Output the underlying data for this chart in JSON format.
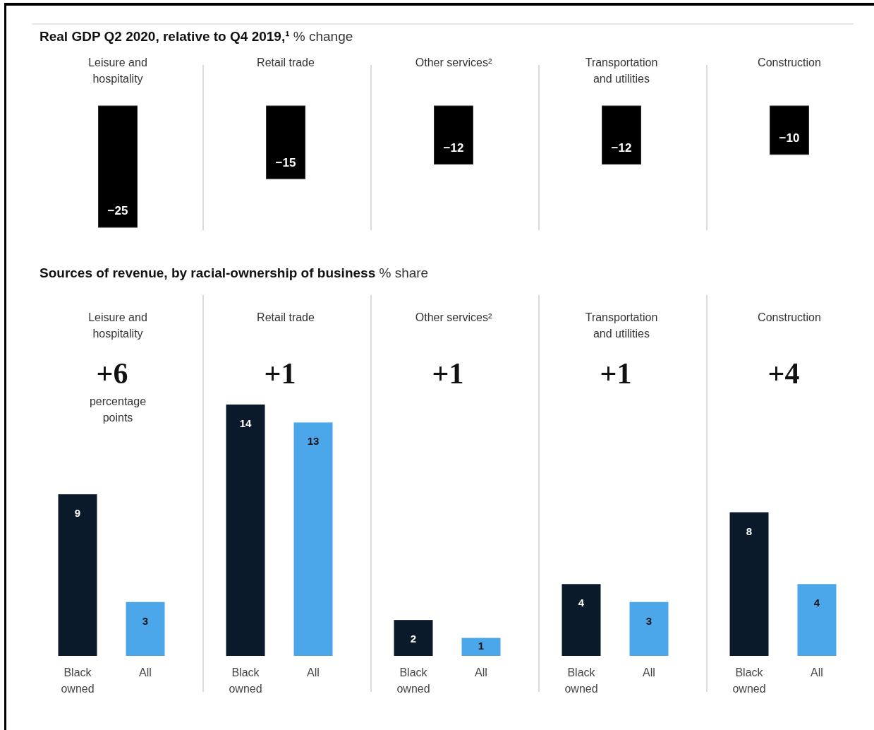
{
  "chart_data": [
    {
      "type": "bar",
      "title": "Real GDP Q2 2020, relative to Q4 2019,¹",
      "subtitle": "% change",
      "categories": [
        "Leisure and hospitality",
        "Retail trade",
        "Other services²",
        "Transportation and utilities",
        "Construction"
      ],
      "values": [
        -25,
        -15,
        -12,
        -12,
        -10
      ],
      "color": "#000000",
      "data_labels": true
    },
    {
      "type": "bar",
      "title": "Sources of revenue, by racial-ownership of business",
      "subtitle": "% share",
      "categories": [
        "Leisure and hospitality",
        "Retail trade",
        "Other services²",
        "Transportation and utilities",
        "Construction"
      ],
      "series": [
        {
          "name": "Black owned",
          "color": "#0b1a2b",
          "values": [
            9,
            14,
            2,
            4,
            8
          ]
        },
        {
          "name": "All",
          "color": "#4ca6ea",
          "values": [
            3,
            13,
            1,
            3,
            4
          ]
        }
      ],
      "data_labels": true,
      "annotations": [
        "+6",
        "percentage points",
        "+1",
        "+1",
        "+1",
        "+4"
      ]
    }
  ]
}
